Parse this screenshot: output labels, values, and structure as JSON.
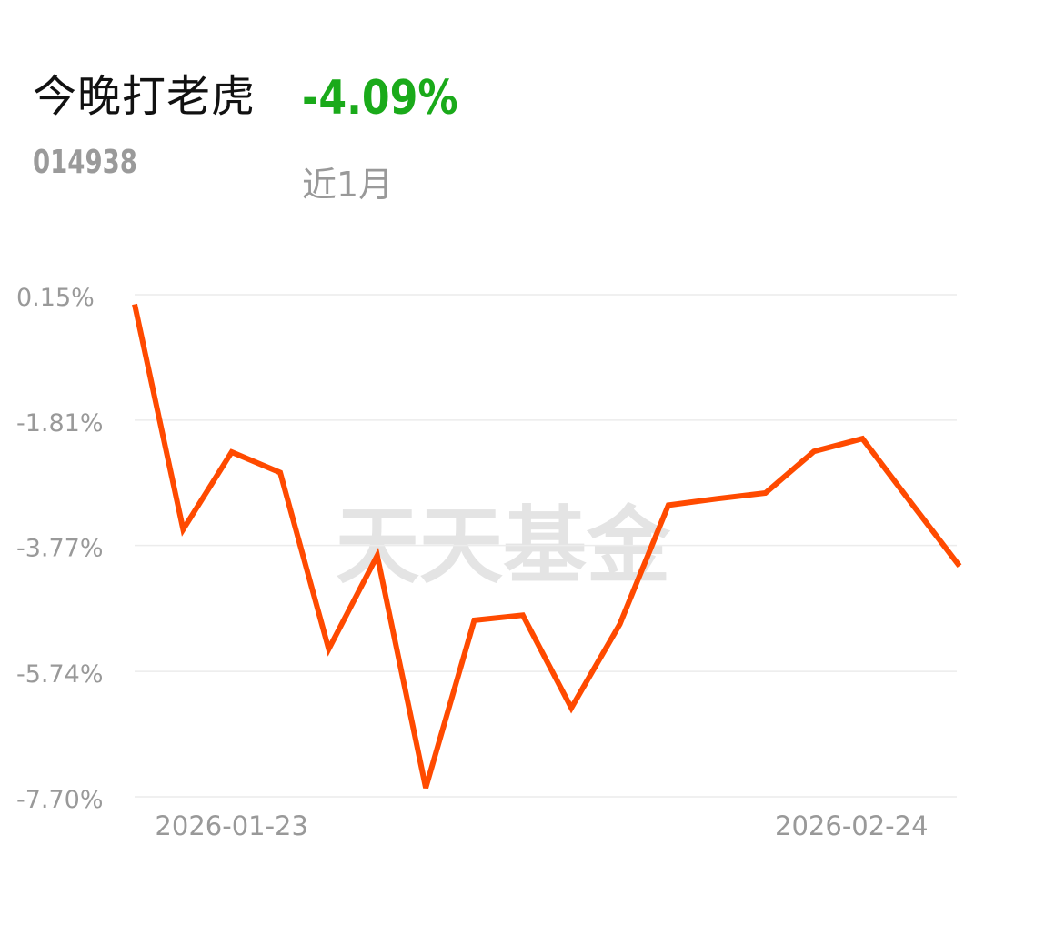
{
  "header": {
    "fund_name": "今晚打老虎",
    "fund_code": "014938",
    "return_value": "-4.09%",
    "return_color": "#1aaa1a",
    "period": "近1月"
  },
  "watermark": "天天基金",
  "chart_data": {
    "type": "line",
    "title": "",
    "xlabel": "",
    "ylabel": "",
    "y_ticks": [
      "0.15%",
      "-1.81%",
      "-3.77%",
      "-5.74%",
      "-7.70%"
    ],
    "y_tick_values": [
      0.15,
      -1.81,
      -3.77,
      -5.74,
      -7.7
    ],
    "ylim": [
      -7.7,
      0.15
    ],
    "x_tick_labels": [
      {
        "index": 2,
        "label": "2026-01-23"
      },
      {
        "index": 15,
        "label": "2026-02-24"
      }
    ],
    "grid": true,
    "line_color": "#ff4a00",
    "series": [
      {
        "values": [
          0.0,
          -3.52,
          -2.31,
          -2.63,
          -5.39,
          -3.93,
          -7.56,
          -4.94,
          -4.86,
          -6.31,
          -5.0,
          -3.14,
          -3.04,
          -2.95,
          -2.3,
          -2.1,
          -3.1,
          -4.09
        ]
      }
    ]
  }
}
